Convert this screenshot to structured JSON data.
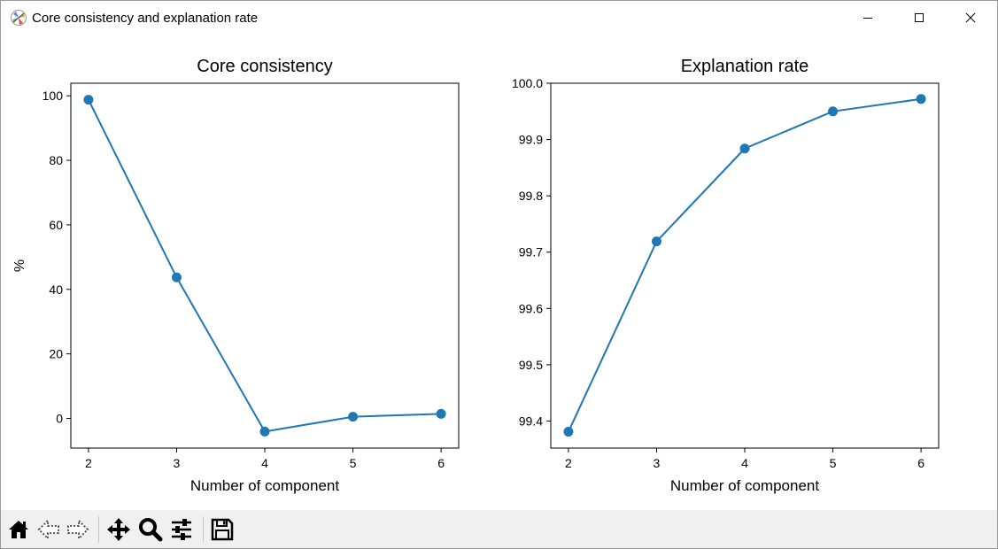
{
  "window": {
    "title": "Core consistency and explanation rate",
    "icon": "matplotlib-icon",
    "controls": [
      "minimize-icon",
      "maximize-icon",
      "close-icon"
    ]
  },
  "toolbar": {
    "buttons": [
      {
        "name": "home-icon",
        "group": 1
      },
      {
        "name": "back-icon",
        "group": 1
      },
      {
        "name": "forward-icon",
        "group": 1
      },
      {
        "name": "pan-icon",
        "group": 2
      },
      {
        "name": "zoom-icon",
        "group": 2
      },
      {
        "name": "configure-subplots-icon",
        "group": 2
      },
      {
        "name": "save-icon",
        "group": 3
      }
    ]
  },
  "colors": {
    "series": "#1f77b4",
    "toolbar_bg": "#f0f0f0"
  },
  "chart_data": [
    {
      "type": "line",
      "title": "Core consistency",
      "xlabel": "Number of component",
      "ylabel": "%",
      "x": [
        2,
        3,
        4,
        5,
        6
      ],
      "values": [
        98.8,
        43.7,
        -4.1,
        0.5,
        1.4
      ],
      "xlim": [
        1.8,
        6.2
      ],
      "ylim": [
        -9.2,
        103.9
      ],
      "xticks": [
        "2",
        "3",
        "4",
        "5",
        "6"
      ],
      "yticks": [
        "0",
        "20",
        "40",
        "60",
        "80",
        "100"
      ],
      "markers": true,
      "grid": false
    },
    {
      "type": "line",
      "title": "Explanation rate",
      "xlabel": "Number of component",
      "ylabel": "",
      "x": [
        2,
        3,
        4,
        5,
        6
      ],
      "values": [
        99.381,
        99.719,
        99.884,
        99.95,
        99.972
      ],
      "xlim": [
        1.8,
        6.2
      ],
      "ylim": [
        99.352,
        100.0
      ],
      "xticks": [
        "2",
        "3",
        "4",
        "5",
        "6"
      ],
      "yticks": [
        "99.4",
        "99.5",
        "99.6",
        "99.7",
        "99.8",
        "99.9",
        "100.0"
      ],
      "markers": true,
      "grid": false
    }
  ]
}
